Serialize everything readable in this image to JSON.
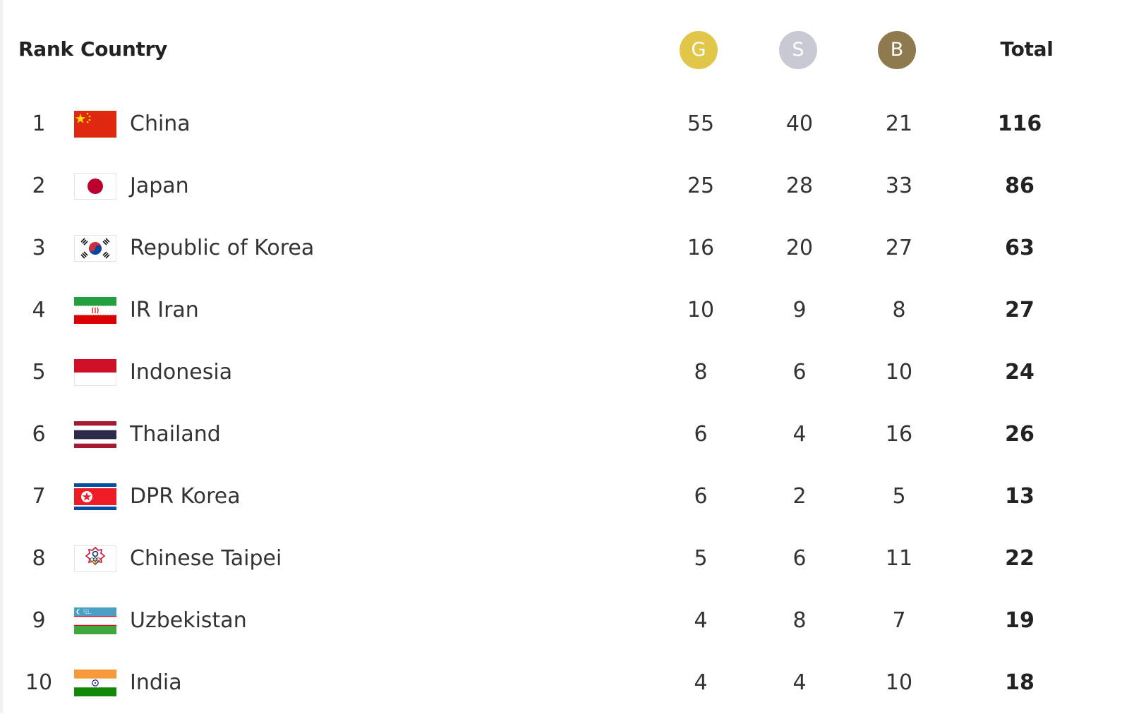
{
  "header": {
    "rank_label": "Rank",
    "country_label": "Country",
    "gold_label": "G",
    "silver_label": "S",
    "bronze_label": "B",
    "total_label": "Total"
  },
  "colors": {
    "gold": "#e2c64a",
    "silver": "#c9c9d3",
    "bronze": "#8f7a4f"
  },
  "rows": [
    {
      "rank": "1",
      "country": "China",
      "flag": "china-flag-icon",
      "gold": "55",
      "silver": "40",
      "bronze": "21",
      "total": "116"
    },
    {
      "rank": "2",
      "country": "Japan",
      "flag": "japan-flag-icon",
      "gold": "25",
      "silver": "28",
      "bronze": "33",
      "total": "86"
    },
    {
      "rank": "3",
      "country": "Republic of Korea",
      "flag": "korea-flag-icon",
      "gold": "16",
      "silver": "20",
      "bronze": "27",
      "total": "63"
    },
    {
      "rank": "4",
      "country": "IR Iran",
      "flag": "iran-flag-icon",
      "gold": "10",
      "silver": "9",
      "bronze": "8",
      "total": "27"
    },
    {
      "rank": "5",
      "country": "Indonesia",
      "flag": "indonesia-flag-icon",
      "gold": "8",
      "silver": "6",
      "bronze": "10",
      "total": "24"
    },
    {
      "rank": "6",
      "country": "Thailand",
      "flag": "thailand-flag-icon",
      "gold": "6",
      "silver": "4",
      "bronze": "16",
      "total": "26"
    },
    {
      "rank": "7",
      "country": "DPR Korea",
      "flag": "dpr-korea-flag-icon",
      "gold": "6",
      "silver": "2",
      "bronze": "5",
      "total": "13"
    },
    {
      "rank": "8",
      "country": "Chinese Taipei",
      "flag": "chinese-taipei-flag-icon",
      "gold": "5",
      "silver": "6",
      "bronze": "11",
      "total": "22"
    },
    {
      "rank": "9",
      "country": "Uzbekistan",
      "flag": "uzbekistan-flag-icon",
      "gold": "4",
      "silver": "8",
      "bronze": "7",
      "total": "19"
    },
    {
      "rank": "10",
      "country": "India",
      "flag": "india-flag-icon",
      "gold": "4",
      "silver": "4",
      "bronze": "10",
      "total": "18"
    }
  ]
}
